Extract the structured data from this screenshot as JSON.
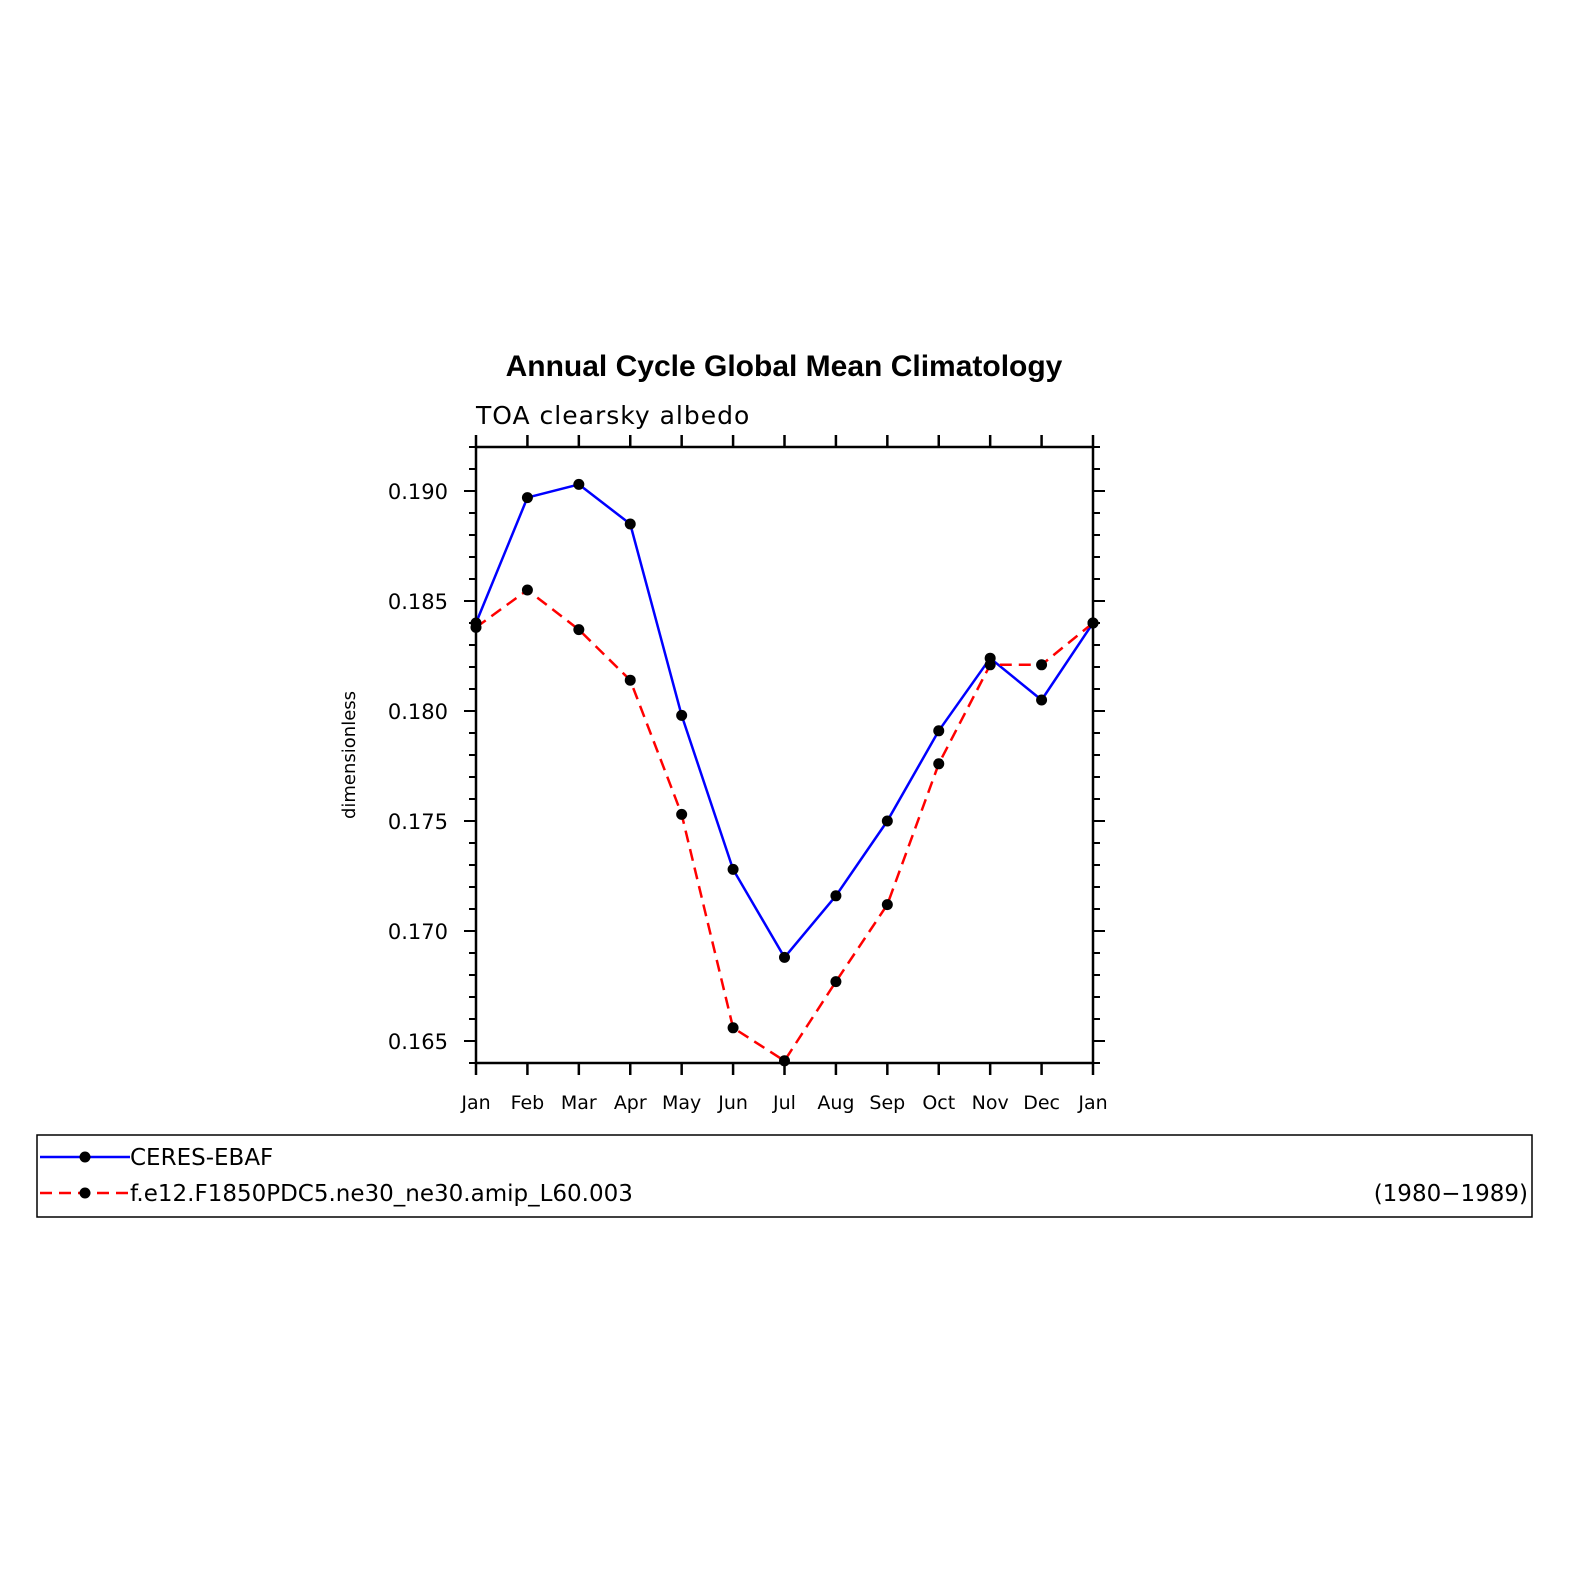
{
  "chart_data": {
    "type": "line",
    "title": "Annual Cycle Global Mean Climatology",
    "subtitle": "TOA clearsky albedo",
    "ylabel": "dimensionless",
    "xlabel": "",
    "categories": [
      "Jan",
      "Feb",
      "Mar",
      "Apr",
      "May",
      "Jun",
      "Jul",
      "Aug",
      "Sep",
      "Oct",
      "Nov",
      "Dec",
      "Jan"
    ],
    "ylim": [
      0.164,
      0.192
    ],
    "yticks": [
      0.165,
      0.17,
      0.175,
      0.18,
      0.185,
      0.19
    ],
    "ytick_labels": [
      "0.165",
      "0.170",
      "0.175",
      "0.180",
      "0.185",
      "0.190"
    ],
    "series": [
      {
        "name": "CERES-EBAF",
        "color": "#0000ff",
        "style": "solid",
        "values": [
          0.184,
          0.1897,
          0.1903,
          0.1885,
          0.1798,
          0.1728,
          0.1688,
          0.1716,
          0.175,
          0.1791,
          0.1824,
          0.1805,
          0.184
        ]
      },
      {
        "name": "f.e12.F1850PDC5.ne30_ne30.amip_L60.003",
        "color": "#ff0000",
        "style": "dashed",
        "values": [
          0.1838,
          0.1855,
          0.1837,
          0.1814,
          0.1753,
          0.1656,
          0.1641,
          0.1677,
          0.1712,
          0.1776,
          0.1821,
          0.1821,
          0.184
        ]
      }
    ],
    "legend": {
      "placement": "below",
      "period": "(1980−1989)"
    },
    "grid": false
  }
}
